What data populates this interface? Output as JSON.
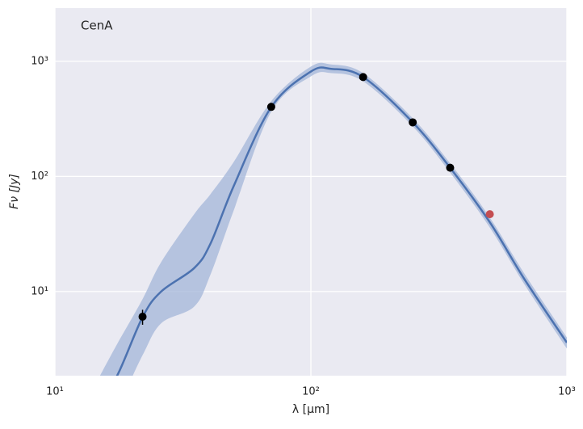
{
  "chart_data": {
    "type": "sed",
    "annotation": "CenA",
    "xlabel": "λ [μm]",
    "ylabel": "Fν [Jy]",
    "xscale": "log",
    "yscale": "log",
    "xlim": [
      10,
      1000
    ],
    "ylim": [
      1.86,
      2900
    ],
    "xticks": [
      {
        "value": 10,
        "label": "10¹"
      },
      {
        "value": 100,
        "label": "10²"
      },
      {
        "value": 1000,
        "label": "10³"
      }
    ],
    "yticks": [
      {
        "value": 10,
        "label": "10¹"
      },
      {
        "value": 100,
        "label": "10²"
      },
      {
        "value": 1000,
        "label": "10³"
      }
    ],
    "grid": true,
    "model": {
      "color": "#4c72b0",
      "band_color": "#a3b5d8",
      "x": [
        15,
        17.5,
        22,
        26,
        35,
        40.5,
        50,
        70,
        100,
        120,
        160,
        250,
        350,
        500,
        680,
        1000
      ],
      "values": [
        1.2,
        1.86,
        6.0,
        10,
        16,
        26,
        83,
        400,
        815,
        860,
        730,
        295,
        119,
        40,
        13,
        3.6
      ],
      "upper": [
        1.86,
        3.5,
        8.6,
        18,
        47,
        70,
        134,
        450,
        900,
        940,
        790,
        320,
        130,
        44,
        14.5,
        4.0
      ],
      "lower": [
        0.8,
        1.0,
        2.8,
        5.3,
        7.4,
        14,
        51,
        365,
        740,
        790,
        670,
        272,
        108,
        36,
        11.7,
        3.2
      ]
    },
    "series": [
      {
        "color": "#000000",
        "x": [
          22,
          70,
          160,
          250,
          350
        ],
        "values": [
          6.05,
          402,
          730,
          295,
          119
        ],
        "errors": [
          0.9,
          20,
          30,
          18,
          8
        ]
      },
      {
        "color": "#c44e52",
        "x": [
          500
        ],
        "values": [
          47
        ]
      }
    ]
  }
}
